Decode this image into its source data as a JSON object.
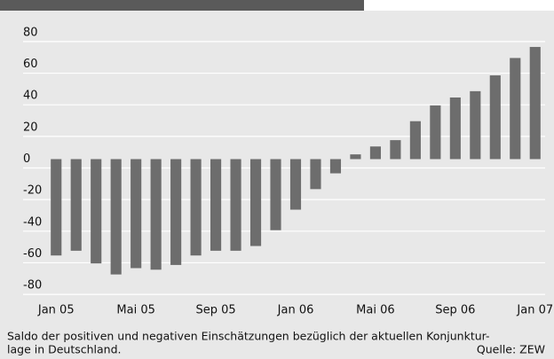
{
  "chart_data": {
    "type": "bar",
    "categories": [
      "Jan 05",
      null,
      null,
      null,
      "Mai 05",
      null,
      null,
      null,
      "Sep 05",
      null,
      null,
      null,
      "Jan 06",
      null,
      null,
      null,
      "Mai 06",
      null,
      null,
      null,
      "Sep 06",
      null,
      null,
      null,
      "Jan 07"
    ],
    "values": [
      -61,
      -58,
      -66,
      -73,
      -69,
      -70,
      -67,
      -61,
      -58,
      -58,
      -55,
      -45,
      -32,
      -19,
      -9,
      3,
      8,
      12,
      24,
      34,
      39,
      43,
      53,
      64,
      71
    ],
    "color": "#6d6d6d",
    "ylim": [
      -85,
      85
    ],
    "yticks": [
      -80,
      -60,
      -40,
      -20,
      0,
      20,
      40,
      60,
      80
    ],
    "grid": true,
    "notes": [
      "Saldo der positiven und negativen Einschätzungen bezüglich der aktuellen Konjunktur-",
      "lage in Deutschland."
    ],
    "source": "Quelle: ZEW"
  }
}
